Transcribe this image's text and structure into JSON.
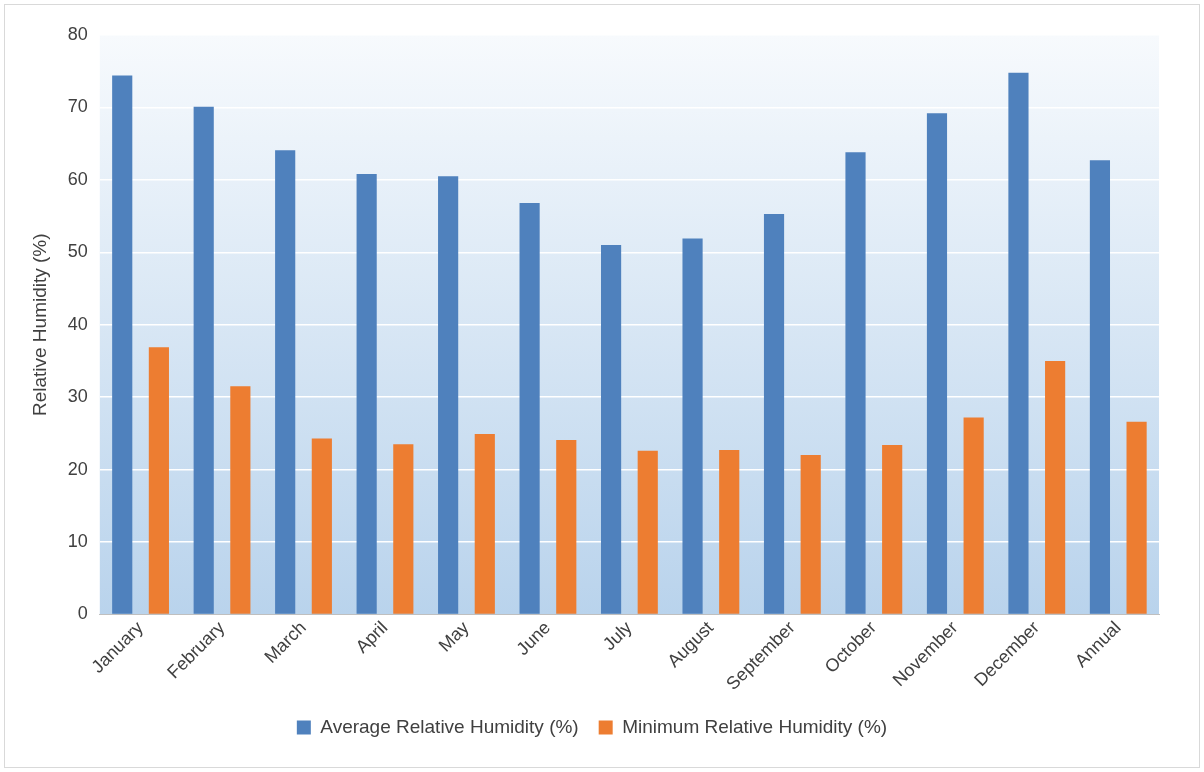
{
  "chart_data": {
    "type": "bar",
    "ylabel": "Relative Humidity (%)",
    "categories": [
      "January",
      "February",
      "March",
      "April",
      "May",
      "June",
      "July",
      "August",
      "September",
      "October",
      "November",
      "December",
      "Annual"
    ],
    "series": [
      {
        "name": "Average Relative Humidity (%)",
        "color": "#4f81bd",
        "values": [
          74.4,
          70.1,
          64.1,
          60.8,
          60.5,
          56.8,
          51.0,
          51.9,
          55.3,
          63.8,
          69.2,
          74.8,
          62.7
        ]
      },
      {
        "name": "Minimum Relative Humidity (%)",
        "color": "#ed7d31",
        "values": [
          36.9,
          31.5,
          24.3,
          23.5,
          24.9,
          24.1,
          22.6,
          22.7,
          22.0,
          23.4,
          27.2,
          35.0,
          26.6
        ]
      }
    ],
    "ylim": [
      0,
      80
    ],
    "yticks": [
      0,
      10,
      20,
      30,
      40,
      50,
      60,
      70,
      80
    ],
    "grid": "y",
    "legend": "bottom"
  }
}
